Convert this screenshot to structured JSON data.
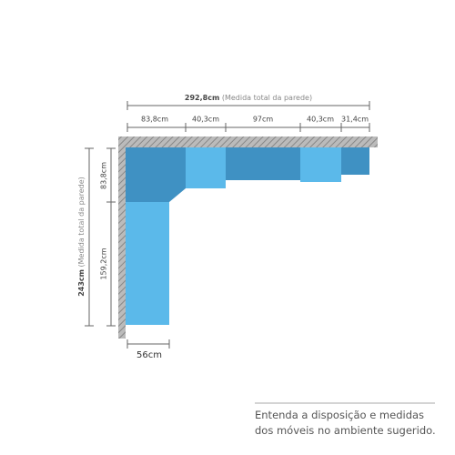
{
  "wall_total": {
    "value": "292,8cm",
    "note": "(Medida total da parede)"
  },
  "wall_segments": [
    "83,8cm",
    "40,3cm",
    "97cm",
    "40,3cm",
    "31,4cm"
  ],
  "side_total": {
    "value": "243cm",
    "note": "(Medida total da parede)"
  },
  "side_segments": [
    "83,8cm",
    "159,2cm"
  ],
  "depth": "56cm",
  "caption": [
    "Entenda a disposição e medidas",
    "dos móveis no ambiente sugerido."
  ]
}
